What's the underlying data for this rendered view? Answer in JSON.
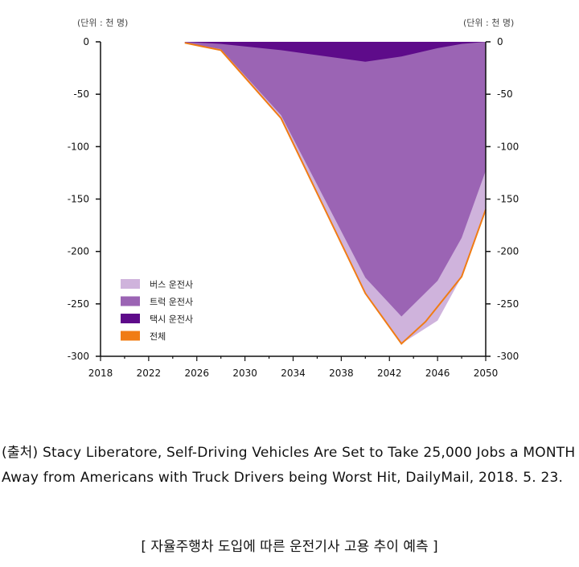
{
  "unit_left": "(단위 : 천 명)",
  "unit_right": "(단위 : 천 명)",
  "colors": {
    "bus": "#cfb3dc",
    "truck": "#9b64b4",
    "taxi": "#5e0b8a",
    "total": "#f07c14",
    "axis": "#111111"
  },
  "chart_data": {
    "type": "area",
    "x_ticks": [
      "2018",
      "2022",
      "2026",
      "2030",
      "2034",
      "2038",
      "2042",
      "2046",
      "2050"
    ],
    "y_ticks": [
      "0",
      "-50",
      "-100",
      "-150",
      "-200",
      "-250",
      "-300"
    ],
    "xlim": [
      2018,
      2050
    ],
    "ylim": [
      -300,
      0
    ],
    "legend_placement": "bottom-left",
    "series": [
      {
        "name": "택시 운전사",
        "key": "taxi",
        "x": [
          2025,
          2028,
          2033,
          2040,
          2043,
          2046,
          2048,
          2050
        ],
        "y": [
          0,
          -2,
          -8,
          -19,
          -14,
          -6,
          -2,
          0
        ]
      },
      {
        "name": "트럭 운전사",
        "key": "truck",
        "x": [
          2025,
          2028,
          2033,
          2040,
          2043,
          2046,
          2048,
          2050
        ],
        "y": [
          -1,
          -7,
          -70,
          -225,
          -262,
          -228,
          -187,
          -123
        ]
      },
      {
        "name": "버스 운전사",
        "key": "bus",
        "x": [
          2025,
          2028,
          2033,
          2040,
          2043,
          2046,
          2048,
          2050
        ],
        "y": [
          -1,
          -8,
          -73,
          -240,
          -288,
          -266,
          -224,
          -160
        ]
      },
      {
        "name": "전체",
        "key": "total",
        "type": "line",
        "x": [
          2025,
          2028,
          2033,
          2040,
          2043,
          2045,
          2048,
          2050
        ],
        "y": [
          -1,
          -8,
          -73,
          -240,
          -288,
          -267,
          -224,
          -160
        ]
      }
    ]
  },
  "source_text": "(출처) Stacy Liberatore, Self-Driving Vehicles Are Set to Take 25,000 Jobs a MONTH Away from Americans with Truck Drivers being Worst Hit, DailyMail, 2018. 5. 23.",
  "caption": "[ 자율주행차 도입에 따른 운전기사 고용 추이 예측 ]"
}
